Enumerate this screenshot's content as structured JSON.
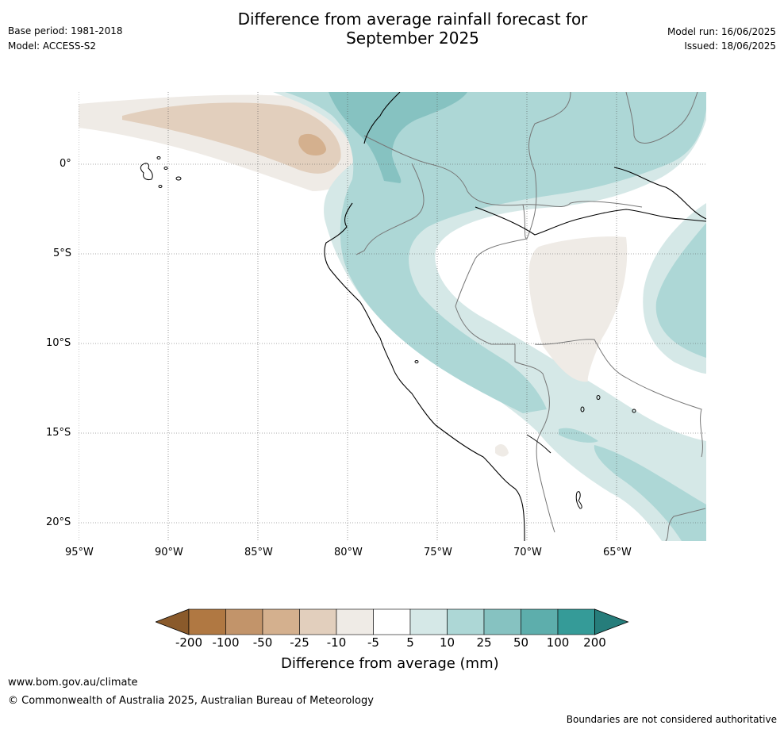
{
  "header": {
    "base_period": "Base period: 1981-2018",
    "model": "Model: ACCESS-S2",
    "title_line1": "Difference from average rainfall forecast for",
    "title_line2": "September 2025",
    "model_run": "Model run: 16/06/2025",
    "issued": "Issued: 18/06/2025"
  },
  "map": {
    "lat_labels": [
      "0°",
      "5°S",
      "10°S",
      "15°S",
      "20°S"
    ],
    "lon_labels": [
      "95°W",
      "90°W",
      "85°W",
      "80°W",
      "75°W",
      "70°W",
      "65°W"
    ]
  },
  "colorbar": {
    "labels": [
      "-200",
      "-100",
      "-50",
      "-25",
      "-10",
      "-5",
      "5",
      "10",
      "25",
      "50",
      "100",
      "200"
    ],
    "colors": [
      "#8a5a2b",
      "#b07842",
      "#c2946a",
      "#d4b08e",
      "#e2cfbd",
      "#efebe6",
      "#ffffff",
      "#d5e8e7",
      "#add7d6",
      "#86c2c1",
      "#5daeac",
      "#359b98",
      "#267d7b"
    ],
    "title": "Difference from average (mm)"
  },
  "footer": {
    "website": "www.bom.gov.au/climate",
    "copyright": "© Commonwealth of Australia 2025, Australian Bureau of Meteorology",
    "disclaimer": "Boundaries are not considered authoritative"
  }
}
